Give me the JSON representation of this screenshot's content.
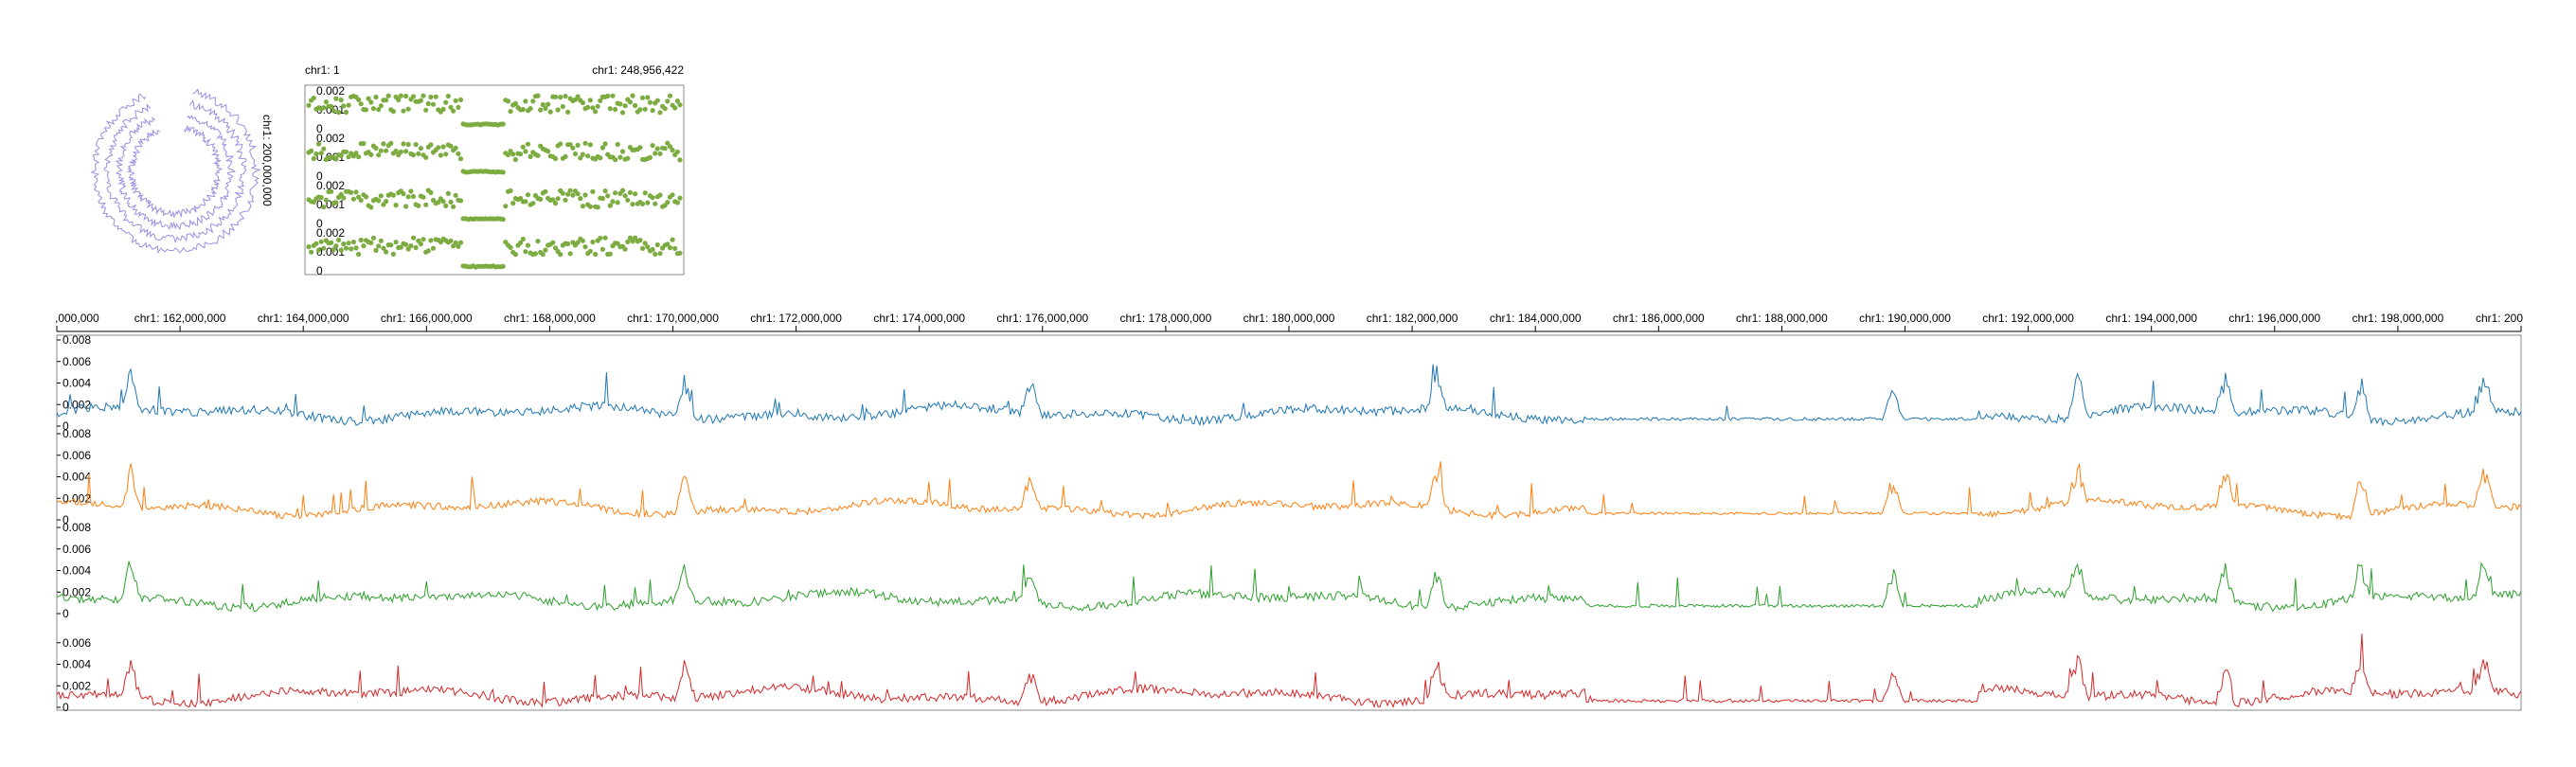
{
  "overview": {
    "left_label": "chr1: 1",
    "right_label": "chr1: 248,956,422",
    "circular_label": "chr1: 200,000,000"
  },
  "colors": {
    "scatter": "#7cac41",
    "circular": "#9b8fe0",
    "frame": "#888888",
    "axis": "#000000"
  },
  "chart_data": [
    {
      "type": "line",
      "name": "circular-overview",
      "ring_count": 4,
      "label": "chr1: 200,000,000"
    },
    {
      "type": "scatter",
      "name": "genome-overview",
      "x_range_labels": [
        "chr1: 1",
        "chr1: 248,956,422"
      ],
      "tracks": [
        {
          "yticks": [
            "0",
            "0.001",
            "0.002"
          ],
          "ylim": [
            0,
            0.002
          ]
        },
        {
          "yticks": [
            "0",
            "0.001",
            "0.002"
          ],
          "ylim": [
            0,
            0.002
          ]
        },
        {
          "yticks": [
            "0",
            "0.001",
            "0.002"
          ],
          "ylim": [
            0,
            0.002
          ]
        },
        {
          "yticks": [
            "0",
            "0.001",
            "0.002"
          ],
          "ylim": [
            0,
            0.002
          ]
        }
      ]
    },
    {
      "type": "line",
      "name": "region-detail",
      "xlim": [
        160000000,
        200000000
      ],
      "xtick_labels": [
        ",000,000",
        "chr1: 162,000,000",
        "chr1: 164,000,000",
        "chr1: 166,000,000",
        "chr1: 168,000,000",
        "chr1: 170,000,000",
        "chr1: 172,000,000",
        "chr1: 174,000,000",
        "chr1: 176,000,000",
        "chr1: 178,000,000",
        "chr1: 180,000,000",
        "chr1: 182,000,000",
        "chr1: 184,000,000",
        "chr1: 186,000,000",
        "chr1: 188,000,000",
        "chr1: 190,000,000",
        "chr1: 192,000,000",
        "chr1: 194,000,000",
        "chr1: 196,000,000",
        "chr1: 198,000,000",
        "chr1: 200"
      ],
      "series": [
        {
          "color": "#1f77b4",
          "ylim": [
            0,
            0.008
          ],
          "yticks": [
            "0",
            "0.002",
            "0.004",
            "0.006",
            "0.008"
          ],
          "baseline": 0.0012,
          "noise": 0.0005
        },
        {
          "color": "#ff7f0e",
          "ylim": [
            0,
            0.008
          ],
          "yticks": [
            "0",
            "0.002",
            "0.004",
            "0.006",
            "0.008"
          ],
          "baseline": 0.0011,
          "noise": 0.0004
        },
        {
          "color": "#2ca02c",
          "ylim": [
            0,
            0.008
          ],
          "yticks": [
            "0",
            "0.002",
            "0.004",
            "0.006",
            "0.008"
          ],
          "baseline": 0.0013,
          "noise": 0.0005
        },
        {
          "color": "#d62728",
          "ylim": [
            0,
            0.008
          ],
          "yticks": [
            "0",
            "0.002",
            "0.004",
            "0.006"
          ],
          "baseline": 0.0011,
          "noise": 0.0005
        }
      ]
    }
  ]
}
